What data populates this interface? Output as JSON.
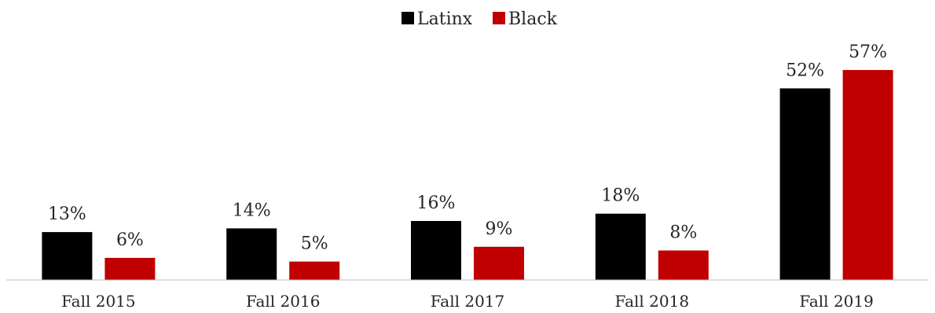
{
  "colors": {
    "latinx": "#000000",
    "black": "#C00000",
    "axis": "#BFBFBF",
    "text": "#262626"
  },
  "chart_data": {
    "type": "bar",
    "title": "",
    "xlabel": "",
    "ylabel": "",
    "ylim": [
      0,
      60
    ],
    "grid": false,
    "legend_position": "top",
    "categories": [
      "Fall 2015",
      "Fall 2016",
      "Fall 2017",
      "Fall 2018",
      "Fall 2019"
    ],
    "series": [
      {
        "name": "Latinx",
        "values": [
          13,
          14,
          16,
          18,
          52
        ],
        "labels": [
          "13%",
          "14%",
          "16%",
          "18%",
          "52%"
        ],
        "color": "#000000"
      },
      {
        "name": "Black",
        "values": [
          6,
          5,
          9,
          8,
          57
        ],
        "labels": [
          "6%",
          "5%",
          "9%",
          "8%",
          "57%"
        ],
        "color": "#C00000"
      }
    ]
  }
}
